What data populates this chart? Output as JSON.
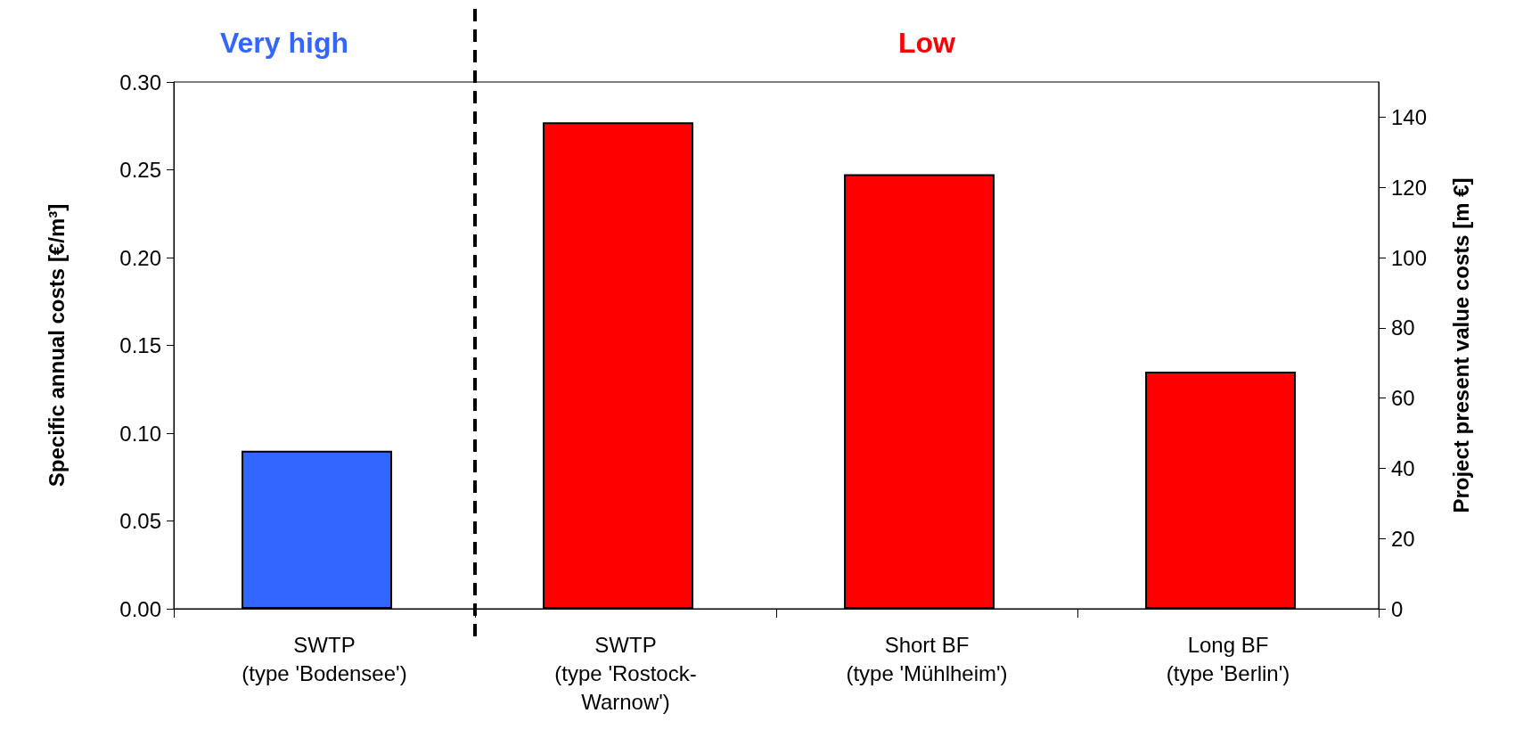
{
  "chart_data": {
    "type": "bar",
    "categories": [
      "SWTP\n(type 'Bodensee')",
      "SWTP\n(type 'Rostock-\nWarnow')",
      "Short BF\n(type 'Mühlheim')",
      "Long BF\n(type 'Berlin')"
    ],
    "values": [
      0.09,
      0.277,
      0.2475,
      0.135
    ],
    "colors": [
      "#3366ff",
      "#ff0000",
      "#ff0000",
      "#ff0000"
    ],
    "ylabel": "Specific annual costs [€/m³]",
    "y2label": "Project present value costs [m €]",
    "ylim": [
      0,
      0.3
    ],
    "yticks": [
      {
        "value": 0,
        "label": "0.00"
      },
      {
        "value": 0.05,
        "label": "0.05"
      },
      {
        "value": 0.1,
        "label": "0.10"
      },
      {
        "value": 0.15,
        "label": "0.15"
      },
      {
        "value": 0.2,
        "label": "0.20"
      },
      {
        "value": 0.25,
        "label": "0.25"
      },
      {
        "value": 0.3,
        "label": "0.30"
      }
    ],
    "y2lim": [
      0,
      150
    ],
    "y2ticks": [
      0,
      20,
      40,
      60,
      80,
      100,
      120,
      140
    ],
    "annotations": [
      "Very high",
      "Low"
    ],
    "grid": false
  }
}
